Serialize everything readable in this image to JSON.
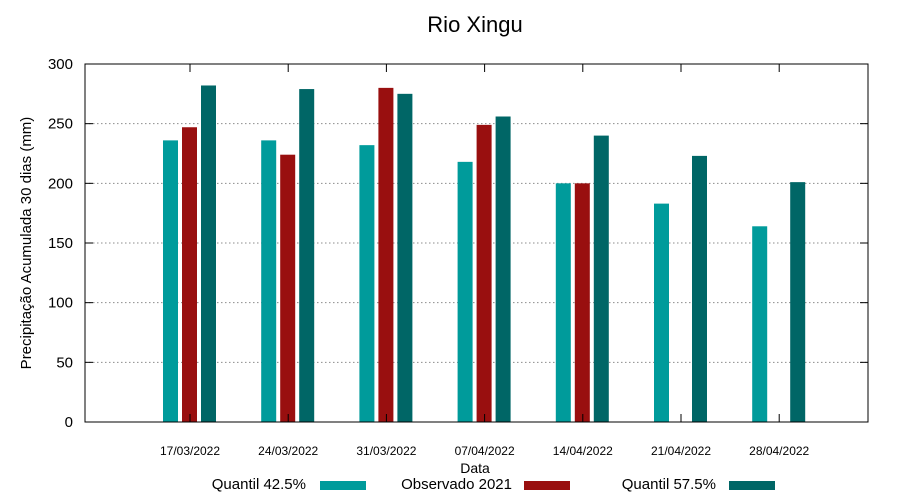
{
  "chart_data": {
    "type": "bar",
    "title": "Rio Xingu",
    "xlabel": "Data",
    "ylabel": "Precipitação Acumulada 30 dias (mm)",
    "ylim": [
      0,
      300
    ],
    "yticks": [
      0,
      50,
      100,
      150,
      200,
      250,
      300
    ],
    "grid": true,
    "legend_position": "bottom",
    "categories": [
      "17/03/2022",
      "24/03/2022",
      "31/03/2022",
      "07/04/2022",
      "14/04/2022",
      "21/04/2022",
      "28/04/2022"
    ],
    "series": [
      {
        "name": "Quantil 42.5%",
        "color": "#009b9b",
        "values": [
          236,
          236,
          232,
          218,
          200,
          183,
          164
        ]
      },
      {
        "name": "Observado 2021",
        "color": "#990f0f",
        "values": [
          247,
          224,
          280,
          249,
          200,
          null,
          null
        ]
      },
      {
        "name": "Quantil 57.5%",
        "color": "#006666",
        "values": [
          282,
          279,
          275,
          256,
          240,
          223,
          201
        ]
      }
    ]
  }
}
